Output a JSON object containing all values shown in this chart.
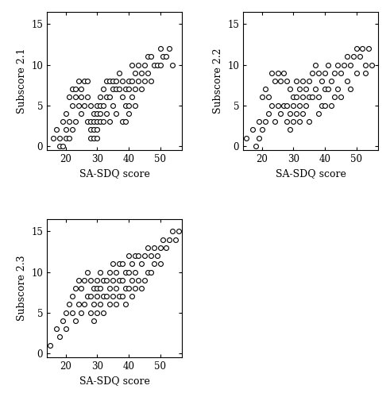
{
  "plots": [
    {
      "xlabel": "SA-SDQ score",
      "ylabel": "Subscore 2.1",
      "xlim": [
        14,
        57
      ],
      "ylim": [
        -0.5,
        16.5
      ],
      "xticks": [
        20,
        30,
        40,
        50
      ],
      "yticks": [
        0,
        5,
        10,
        15
      ]
    },
    {
      "xlabel": "SA-SDQ score",
      "ylabel": "Subscore 2.2",
      "xlim": [
        14,
        57
      ],
      "ylim": [
        -0.5,
        16.5
      ],
      "xticks": [
        20,
        30,
        40,
        50
      ],
      "yticks": [
        0,
        5,
        10,
        15
      ]
    },
    {
      "xlabel": "SA-SDQ score",
      "ylabel": "Subscore 2.3",
      "xlim": [
        14,
        57
      ],
      "ylim": [
        -0.5,
        16.5
      ],
      "xticks": [
        20,
        30,
        40,
        50
      ],
      "yticks": [
        0,
        5,
        10,
        15
      ]
    }
  ],
  "scatter1_x": [
    16,
    17,
    18,
    18,
    19,
    19,
    20,
    20,
    20,
    21,
    21,
    21,
    22,
    22,
    22,
    23,
    23,
    23,
    24,
    24,
    25,
    25,
    25,
    26,
    26,
    27,
    27,
    27,
    28,
    28,
    28,
    28,
    29,
    29,
    29,
    29,
    30,
    30,
    30,
    30,
    30,
    31,
    31,
    31,
    31,
    32,
    32,
    32,
    33,
    33,
    33,
    34,
    34,
    34,
    35,
    35,
    35,
    36,
    36,
    36,
    37,
    37,
    38,
    38,
    38,
    39,
    39,
    39,
    40,
    40,
    40,
    40,
    41,
    41,
    41,
    42,
    42,
    42,
    43,
    43,
    44,
    44,
    45,
    45,
    46,
    46,
    47,
    47,
    48,
    49,
    50,
    50,
    51,
    52,
    53,
    54
  ],
  "scatter1_y": [
    1,
    2,
    1,
    0,
    0,
    3,
    2,
    1,
    4,
    6,
    3,
    1,
    7,
    5,
    2,
    7,
    6,
    3,
    8,
    5,
    7,
    6,
    4,
    8,
    5,
    8,
    6,
    3,
    5,
    3,
    2,
    1,
    4,
    3,
    2,
    1,
    5,
    4,
    3,
    2,
    1,
    6,
    5,
    4,
    3,
    7,
    5,
    3,
    8,
    6,
    4,
    8,
    6,
    3,
    8,
    7,
    5,
    8,
    7,
    4,
    9,
    7,
    8,
    6,
    3,
    7,
    5,
    3,
    8,
    7,
    5,
    4,
    10,
    8,
    6,
    9,
    7,
    5,
    10,
    8,
    9,
    7,
    10,
    8,
    11,
    9,
    11,
    8,
    10,
    10,
    12,
    10,
    11,
    11,
    12,
    10
  ],
  "scatter2_x": [
    15,
    17,
    18,
    19,
    19,
    20,
    20,
    21,
    21,
    22,
    22,
    23,
    23,
    24,
    24,
    25,
    25,
    26,
    26,
    27,
    27,
    28,
    28,
    28,
    29,
    29,
    29,
    30,
    30,
    30,
    31,
    31,
    31,
    32,
    32,
    32,
    33,
    33,
    33,
    34,
    34,
    35,
    35,
    35,
    36,
    36,
    37,
    37,
    38,
    38,
    38,
    39,
    39,
    40,
    40,
    40,
    41,
    41,
    42,
    42,
    43,
    43,
    44,
    44,
    45,
    45,
    46,
    47,
    47,
    48,
    48,
    49,
    50,
    50,
    51,
    52,
    53,
    53,
    54,
    55
  ],
  "scatter2_y": [
    1,
    2,
    0,
    3,
    1,
    6,
    2,
    7,
    3,
    6,
    4,
    9,
    5,
    8,
    3,
    9,
    5,
    8,
    4,
    9,
    5,
    8,
    5,
    3,
    7,
    4,
    2,
    6,
    5,
    3,
    8,
    6,
    4,
    7,
    5,
    3,
    8,
    6,
    4,
    7,
    5,
    8,
    6,
    3,
    9,
    6,
    10,
    7,
    9,
    6,
    4,
    8,
    5,
    9,
    7,
    5,
    10,
    7,
    8,
    5,
    9,
    6,
    10,
    7,
    9,
    6,
    10,
    11,
    8,
    10,
    7,
    11,
    12,
    9,
    11,
    12,
    10,
    9,
    12,
    10
  ],
  "scatter3_x": [
    15,
    17,
    18,
    19,
    20,
    20,
    21,
    22,
    22,
    23,
    23,
    24,
    24,
    25,
    25,
    26,
    26,
    27,
    27,
    28,
    28,
    28,
    29,
    29,
    29,
    30,
    30,
    30,
    30,
    31,
    31,
    31,
    32,
    32,
    32,
    33,
    33,
    34,
    34,
    34,
    35,
    35,
    35,
    36,
    36,
    36,
    37,
    37,
    37,
    38,
    38,
    38,
    39,
    39,
    39,
    40,
    40,
    40,
    41,
    41,
    41,
    42,
    42,
    42,
    43,
    43,
    44,
    44,
    45,
    45,
    46,
    46,
    47,
    47,
    48,
    48,
    49,
    50,
    50,
    51,
    52,
    53,
    54,
    55,
    56
  ],
  "scatter3_y": [
    1,
    3,
    2,
    4,
    5,
    3,
    6,
    7,
    5,
    8,
    4,
    9,
    6,
    8,
    5,
    9,
    6,
    10,
    7,
    9,
    7,
    5,
    8,
    6,
    4,
    9,
    8,
    7,
    5,
    10,
    8,
    6,
    9,
    7,
    5,
    9,
    7,
    10,
    8,
    6,
    11,
    9,
    7,
    10,
    8,
    6,
    11,
    9,
    7,
    11,
    9,
    7,
    10,
    8,
    6,
    12,
    10,
    8,
    11,
    9,
    7,
    12,
    10,
    8,
    12,
    9,
    11,
    8,
    12,
    9,
    13,
    10,
    12,
    10,
    13,
    11,
    12,
    13,
    11,
    14,
    13,
    14,
    15,
    14,
    15
  ],
  "marker_size": 18,
  "marker_color": "white",
  "marker_edge_color": "black",
  "marker_edge_width": 0.8,
  "marker_style": "o",
  "font_family": "DejaVu Serif",
  "label_fontsize": 9,
  "tick_fontsize": 8.5
}
